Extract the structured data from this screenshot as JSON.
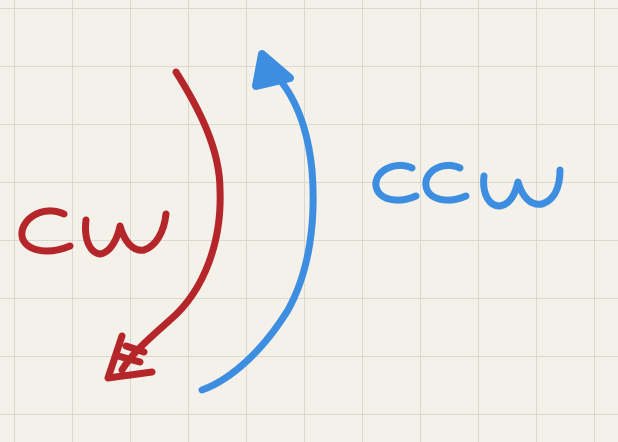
{
  "labels": {
    "red": "cw",
    "blue": "ccw"
  },
  "colors": {
    "red": "#b5262a",
    "blue": "#3d8ee0",
    "paper": "#f4f1ea",
    "grid": "#dcd8cf"
  }
}
